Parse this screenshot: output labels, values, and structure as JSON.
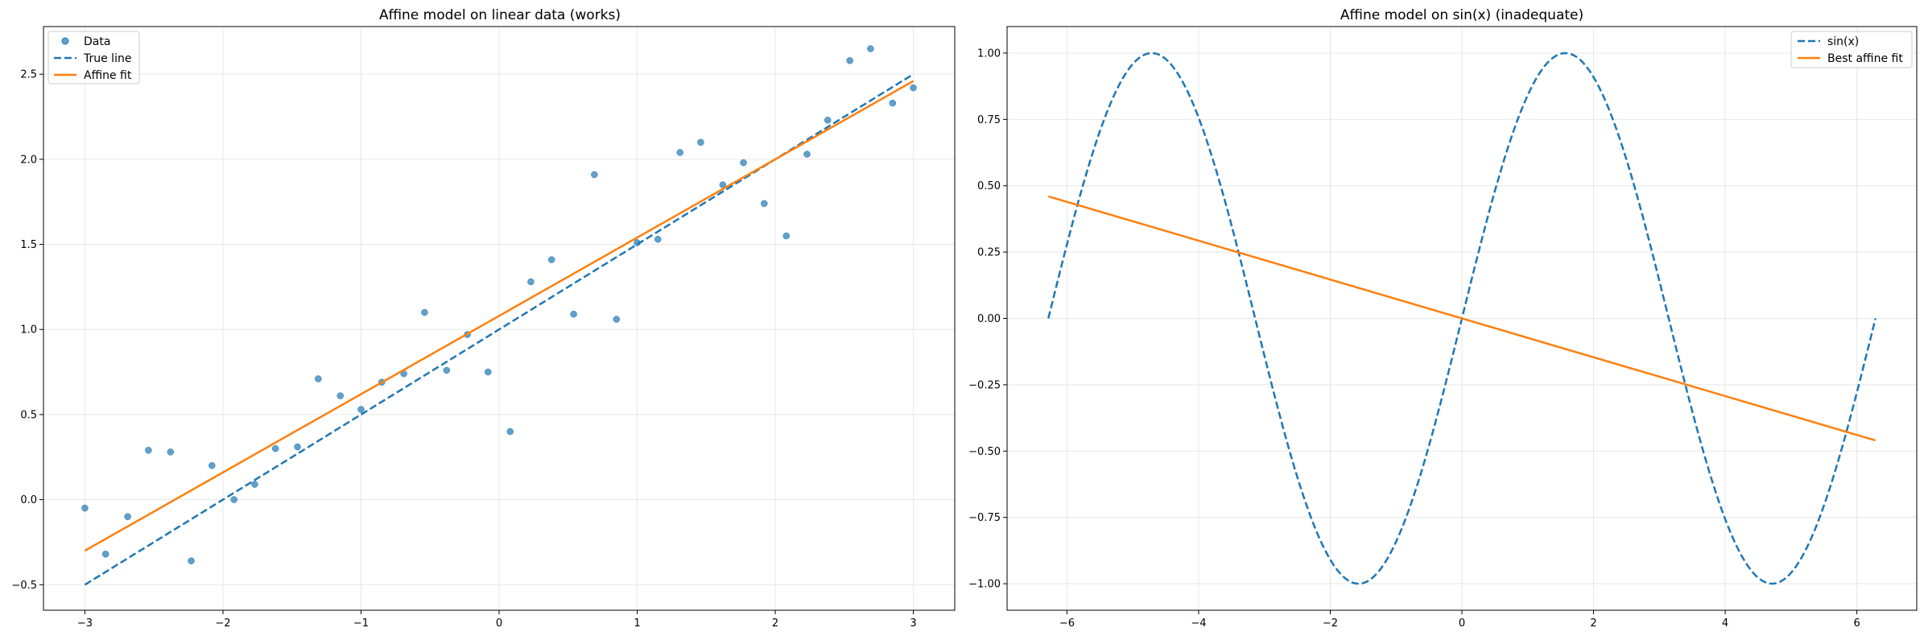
{
  "colors": {
    "blue": "#1f77b4",
    "orange": "#ff7f0e"
  },
  "chart_data": [
    {
      "type": "scatter",
      "title": "Affine model on linear data (works)",
      "xlabel": "",
      "ylabel": "",
      "xlim": [
        -3.3,
        3.3
      ],
      "ylim": [
        -0.65,
        2.78
      ],
      "xticks": [
        -3,
        -2,
        -1,
        0,
        1,
        2,
        3
      ],
      "yticks": [
        -0.5,
        0.0,
        0.5,
        1.0,
        1.5,
        2.0,
        2.5
      ],
      "ytick_labels": [
        "−0.5",
        "0.0",
        "0.5",
        "1.0",
        "1.5",
        "2.0",
        "2.5"
      ],
      "xtick_labels": [
        "−3",
        "−2",
        "−1",
        "0",
        "1",
        "2",
        "3"
      ],
      "grid": true,
      "legend_position": "upper-left",
      "series": [
        {
          "name": "Data",
          "kind": "scatter",
          "color": "#1f77b4",
          "x": [
            -3.0,
            -2.85,
            -2.69,
            -2.54,
            -2.38,
            -2.23,
            -2.08,
            -1.92,
            -1.77,
            -1.62,
            -1.46,
            -1.31,
            -1.15,
            -1.0,
            -0.85,
            -0.69,
            -0.54,
            -0.38,
            -0.23,
            -0.08,
            0.08,
            0.23,
            0.38,
            0.54,
            0.69,
            0.85,
            1.0,
            1.15,
            1.31,
            1.46,
            1.62,
            1.77,
            1.92,
            2.08,
            2.23,
            2.38,
            2.54,
            2.69,
            2.85,
            3.0
          ],
          "y": [
            -0.05,
            -0.32,
            -0.1,
            0.29,
            0.28,
            -0.36,
            0.2,
            0.0,
            0.09,
            0.3,
            0.31,
            0.71,
            0.61,
            0.53,
            0.69,
            0.74,
            1.1,
            0.76,
            0.97,
            0.75,
            0.4,
            1.28,
            1.41,
            1.09,
            1.91,
            1.06,
            1.51,
            1.53,
            2.04,
            2.1,
            1.85,
            1.98,
            1.74,
            1.55,
            2.03,
            2.23,
            2.58,
            2.65,
            2.33,
            2.42
          ]
        },
        {
          "name": "True line",
          "kind": "line",
          "dashed": true,
          "color": "#1f77b4",
          "x": [
            -3,
            3
          ],
          "y": [
            -0.5,
            2.5
          ]
        },
        {
          "name": "Affine fit",
          "kind": "line",
          "dashed": false,
          "color": "#ff7f0e",
          "x": [
            -3,
            3
          ],
          "y": [
            -0.3,
            2.46
          ]
        }
      ]
    },
    {
      "type": "line",
      "title": "Affine model on sin(x) (inadequate)",
      "xlabel": "",
      "ylabel": "",
      "xlim": [
        -6.91,
        6.91
      ],
      "ylim": [
        -1.1,
        1.1
      ],
      "xticks": [
        -6,
        -4,
        -2,
        0,
        2,
        4,
        6
      ],
      "xtick_labels": [
        "−6",
        "−4",
        "−2",
        "0",
        "2",
        "4",
        "6"
      ],
      "yticks": [
        -1.0,
        -0.75,
        -0.5,
        -0.25,
        0.0,
        0.25,
        0.5,
        0.75,
        1.0
      ],
      "ytick_labels": [
        "−1.00",
        "−0.75",
        "−0.50",
        "−0.25",
        "0.00",
        "0.25",
        "0.50",
        "0.75",
        "1.00"
      ],
      "grid": true,
      "legend_position": "upper-right",
      "series": [
        {
          "name": "sin(x)",
          "kind": "function",
          "function": "sin",
          "domain": [
            -6.283,
            6.283
          ],
          "dashed": true,
          "color": "#1f77b4"
        },
        {
          "name": "Best affine fit",
          "kind": "line",
          "dashed": false,
          "color": "#ff7f0e",
          "x": [
            -6.283,
            6.283
          ],
          "y": [
            0.46,
            -0.46
          ]
        }
      ]
    }
  ]
}
